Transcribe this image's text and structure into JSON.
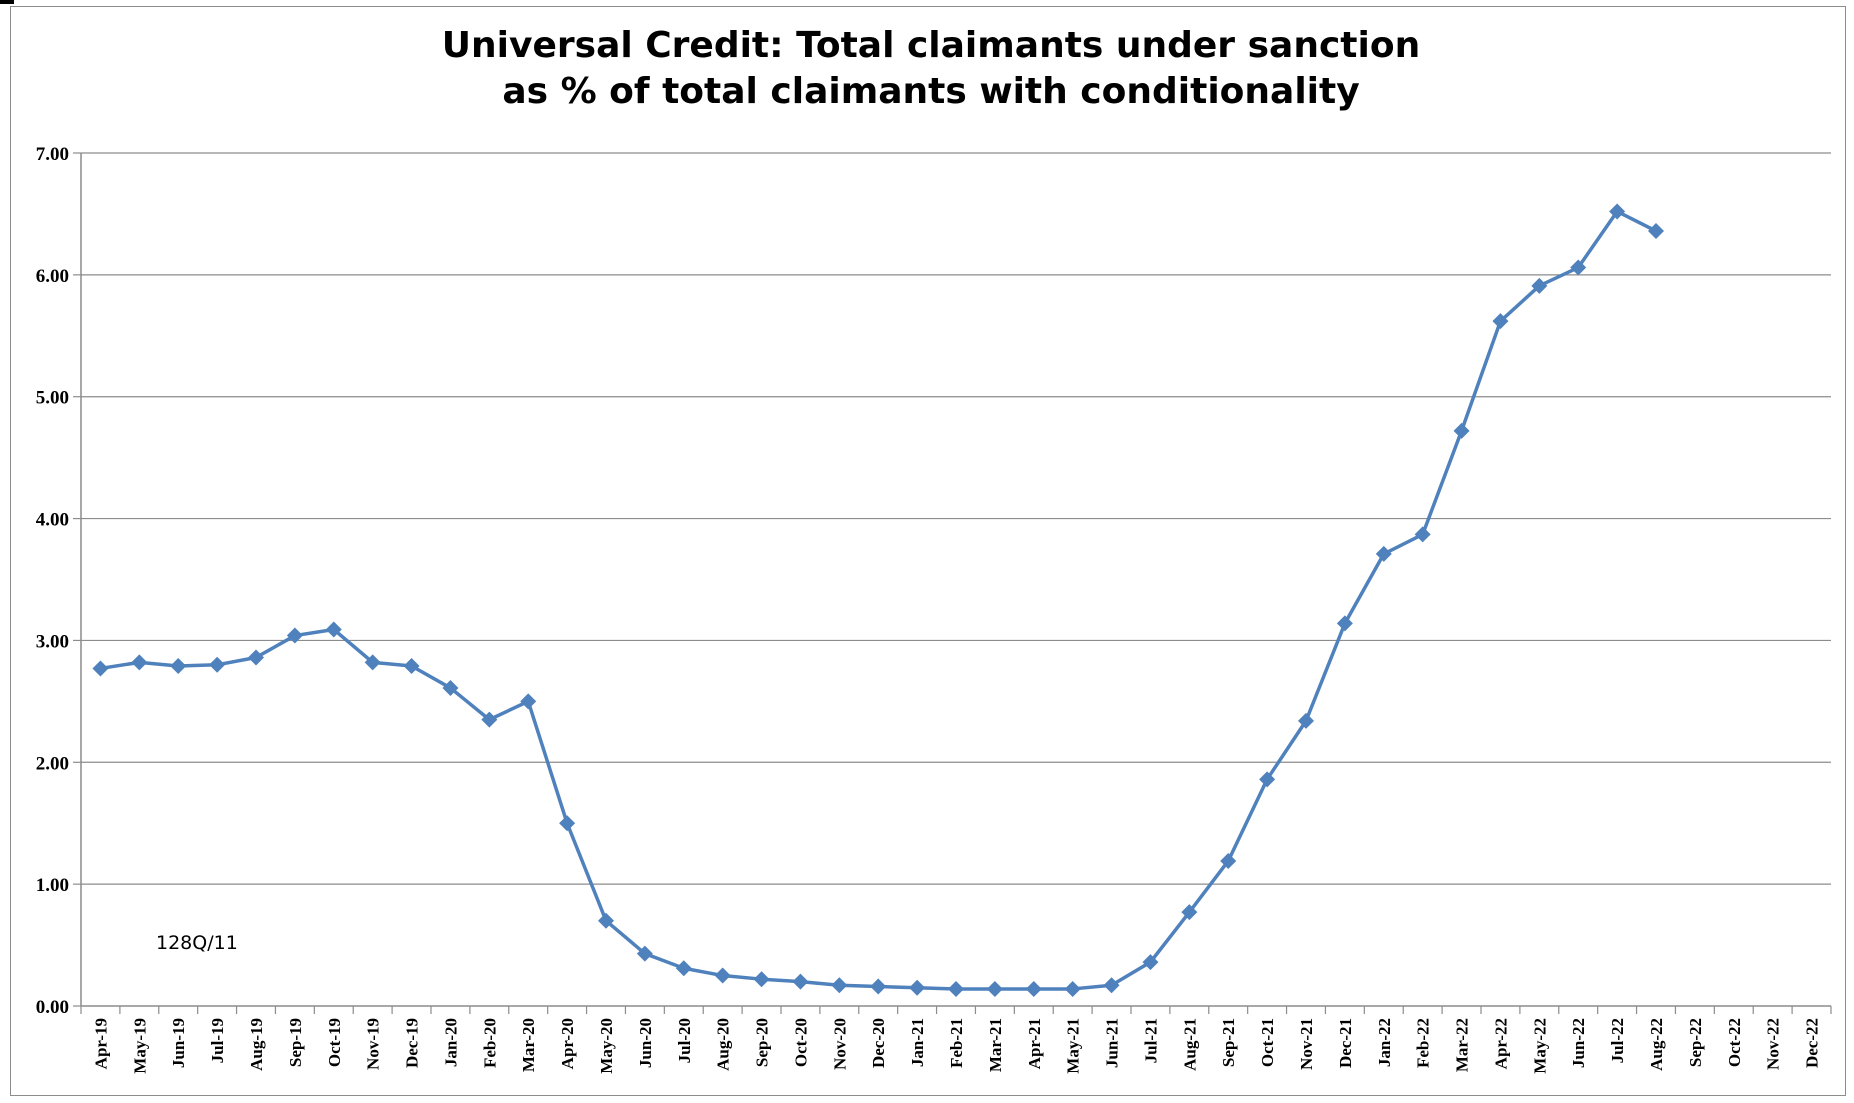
{
  "chart_data": {
    "type": "line",
    "title_lines": [
      "Universal Credit: Total claimants under sanction",
      "as % of total claimants with conditionality"
    ],
    "xlabel": "",
    "ylabel": "",
    "ylim": [
      0,
      7
    ],
    "y_ticks": [
      "0.00",
      "1.00",
      "2.00",
      "3.00",
      "4.00",
      "5.00",
      "6.00",
      "7.00"
    ],
    "grid": true,
    "legend": "none",
    "categories": [
      "Apr-19",
      "May-19",
      "Jun-19",
      "Jul-19",
      "Aug-19",
      "Sep-19",
      "Oct-19",
      "Nov-19",
      "Dec-19",
      "Jan-20",
      "Feb-20",
      "Mar-20",
      "Apr-20",
      "May-20",
      "Jun-20",
      "Jul-20",
      "Aug-20",
      "Sep-20",
      "Oct-20",
      "Nov-20",
      "Dec-20",
      "Jan-21",
      "Feb-21",
      "Mar-21",
      "Apr-21",
      "May-21",
      "Jun-21",
      "Jul-21",
      "Aug-21",
      "Sep-21",
      "Oct-21",
      "Nov-21",
      "Dec-21",
      "Jan-22",
      "Feb-22",
      "Mar-22",
      "Apr-22",
      "May-22",
      "Jun-22",
      "Jul-22",
      "Aug-22",
      "Sep-22",
      "Oct-22",
      "Nov-22",
      "Dec-22"
    ],
    "series": [
      {
        "values": [
          2.77,
          2.82,
          2.79,
          2.8,
          2.86,
          3.04,
          3.09,
          2.82,
          2.79,
          2.61,
          2.35,
          2.5,
          1.5,
          0.7,
          0.43,
          0.31,
          0.25,
          0.22,
          0.2,
          0.17,
          0.16,
          0.15,
          0.14,
          0.14,
          0.14,
          0.14,
          0.17,
          0.36,
          0.77,
          1.19,
          1.86,
          2.34,
          3.14,
          3.71,
          3.87,
          4.72,
          5.62,
          5.91,
          6.06,
          6.52,
          6.36,
          null,
          null,
          null,
          null
        ],
        "color": "#4f81bd"
      }
    ],
    "annotation": "128Q/11"
  },
  "colors": {
    "line": "#4f81bd",
    "grid": "#8c8c8c",
    "axis": "#8c8c8c",
    "frame": "#8c8c8c"
  }
}
